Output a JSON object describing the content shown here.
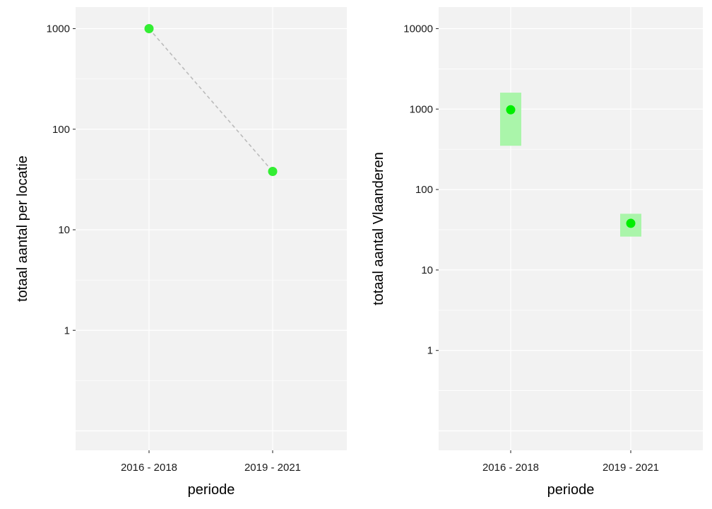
{
  "chart_data": [
    {
      "type": "scatter",
      "title": "",
      "xlabel": "periode",
      "ylabel": "totaal aantal per locatie",
      "y_scale": "log10",
      "ylim": [
        0.1,
        1000
      ],
      "grid": true,
      "categories": [
        "2016 - 2018",
        "2019 - 2021"
      ],
      "yticks": [
        1,
        10,
        100,
        1000
      ],
      "ytick_labels": [
        "1",
        "10",
        "100",
        "1000"
      ],
      "connect_points": "dashed",
      "point_color": "#33ee33",
      "line_color": "#bbbbbb",
      "points": [
        {
          "category": "2016 - 2018",
          "value": 1000
        },
        {
          "category": "2019 - 2021",
          "value": 38
        }
      ]
    },
    {
      "type": "scatter",
      "title": "",
      "xlabel": "periode",
      "ylabel": "totaal aantal Vlaanderen",
      "y_scale": "log10",
      "ylim": [
        0.1,
        10000
      ],
      "grid": true,
      "categories": [
        "2016 - 2018",
        "2019 - 2021"
      ],
      "yticks": [
        1,
        10,
        100,
        1000,
        10000
      ],
      "ytick_labels": [
        "1",
        "10",
        "100",
        "1000",
        "10000"
      ],
      "point_color": "#00ee00",
      "interval_color": "#aaf5aa",
      "points": [
        {
          "category": "2016 - 2018",
          "value": 980,
          "lower": 350,
          "upper": 1600
        },
        {
          "category": "2019 - 2021",
          "value": 38,
          "lower": 26,
          "upper": 50
        }
      ]
    }
  ]
}
